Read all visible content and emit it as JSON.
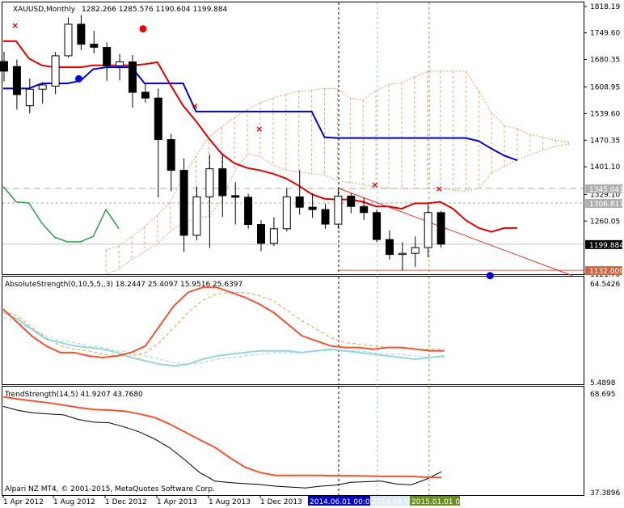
{
  "chart_data": {
    "type": "candlestick",
    "symbol_label": "XAUUSD,Monthly",
    "ohlc_label": "1282.266 1285.576 1190.604 1199.884",
    "footer": "Alpari NZ MT4, © 2001-2015, MetaQuotes Software Corp.",
    "colors": {
      "bull": "#ffffff",
      "bear": "#000000",
      "kijun": "#0000cc",
      "tenkan": "#dd0000",
      "chikou": "#2e9e48",
      "cloud": "#e9a070",
      "trendline": "#dd3322",
      "grey_level": "#999999",
      "vline_black": "#000000",
      "vline_blue": "#8fc7d9",
      "vline_brown": "#b08a4a",
      "as_main": "#ee5533",
      "as_second": "#99d3dd",
      "ts_main": "#ee5533",
      "ts_second": "#000000",
      "tag_blue": "#0000cc",
      "tag_olive": "#6b8e23",
      "tag_light": "#dce8f0"
    },
    "price_axis": {
      "range": [
        1121.71,
        1818.19
      ],
      "labels": [
        "1818.19",
        "1749.60",
        "1680.35",
        "1608.95",
        "1539.60",
        "1470.35",
        "1401.10",
        "1329.10",
        "1260.05",
        "1121.70"
      ],
      "level_tags": [
        "1345.041",
        "1306.817",
        "1199.884",
        "1132.009"
      ]
    },
    "time_axis": {
      "labels": [
        "1 Apr 2012",
        "1 Aug 2012",
        "1 Dec 2012",
        "1 Apr 2013",
        "1 Aug 2013",
        "1 Dec 2013"
      ],
      "highlight_tags": [
        "2014.06.01 00:00",
        "2014.09.01 00:00",
        "2015.01.01 00:00"
      ]
    },
    "candles": [
      {
        "o": 1675,
        "h": 1700,
        "l": 1623,
        "c": 1650
      },
      {
        "o": 1662,
        "h": 1680,
        "l": 1550,
        "c": 1589
      },
      {
        "o": 1560,
        "h": 1631,
        "l": 1540,
        "c": 1603
      },
      {
        "o": 1603,
        "h": 1621,
        "l": 1565,
        "c": 1614
      },
      {
        "o": 1611,
        "h": 1700,
        "l": 1590,
        "c": 1690
      },
      {
        "o": 1690,
        "h": 1790,
        "l": 1685,
        "c": 1772
      },
      {
        "o": 1772,
        "h": 1796,
        "l": 1705,
        "c": 1720
      },
      {
        "o": 1720,
        "h": 1755,
        "l": 1696,
        "c": 1712
      },
      {
        "o": 1712,
        "h": 1725,
        "l": 1625,
        "c": 1664
      },
      {
        "o": 1664,
        "h": 1695,
        "l": 1626,
        "c": 1674
      },
      {
        "o": 1674,
        "h": 1692,
        "l": 1555,
        "c": 1595
      },
      {
        "o": 1595,
        "h": 1617,
        "l": 1568,
        "c": 1580
      },
      {
        "o": 1580,
        "h": 1605,
        "l": 1321,
        "c": 1472
      },
      {
        "o": 1472,
        "h": 1487,
        "l": 1338,
        "c": 1392
      },
      {
        "o": 1392,
        "h": 1423,
        "l": 1180,
        "c": 1223
      },
      {
        "o": 1223,
        "h": 1349,
        "l": 1210,
        "c": 1323
      },
      {
        "o": 1323,
        "h": 1433,
        "l": 1190,
        "c": 1396
      },
      {
        "o": 1396,
        "h": 1434,
        "l": 1271,
        "c": 1326
      },
      {
        "o": 1326,
        "h": 1361,
        "l": 1251,
        "c": 1322
      },
      {
        "o": 1322,
        "h": 1331,
        "l": 1240,
        "c": 1251
      },
      {
        "o": 1251,
        "h": 1262,
        "l": 1182,
        "c": 1202
      },
      {
        "o": 1202,
        "h": 1270,
        "l": 1195,
        "c": 1240
      },
      {
        "o": 1240,
        "h": 1346,
        "l": 1233,
        "c": 1323
      },
      {
        "o": 1323,
        "h": 1392,
        "l": 1277,
        "c": 1296
      },
      {
        "o": 1296,
        "h": 1332,
        "l": 1268,
        "c": 1290
      },
      {
        "o": 1290,
        "h": 1305,
        "l": 1240,
        "c": 1252
      },
      {
        "o": 1252,
        "h": 1345,
        "l": 1240,
        "c": 1325
      },
      {
        "o": 1325,
        "h": 1332,
        "l": 1280,
        "c": 1298
      },
      {
        "o": 1298,
        "h": 1321,
        "l": 1263,
        "c": 1282
      },
      {
        "o": 1282,
        "h": 1290,
        "l": 1206,
        "c": 1212
      },
      {
        "o": 1212,
        "h": 1236,
        "l": 1160,
        "c": 1173
      },
      {
        "o": 1173,
        "h": 1205,
        "l": 1131,
        "c": 1176
      },
      {
        "o": 1176,
        "h": 1220,
        "l": 1141,
        "c": 1191
      },
      {
        "o": 1191,
        "h": 1305,
        "l": 1166,
        "c": 1282
      },
      {
        "o": 1282,
        "h": 1286,
        "l": 1191,
        "c": 1200
      }
    ],
    "kijun_line": [
      1605,
      1605,
      1605,
      1618,
      1618,
      1618,
      1625,
      1655,
      1660,
      1660,
      1660,
      1618,
      1618,
      1618,
      1618,
      1545,
      1545,
      1545,
      1545,
      1545,
      1545,
      1545,
      1545,
      1545,
      1545,
      1478,
      1476,
      1476,
      1476,
      1476,
      1476,
      1476,
      1476,
      1476,
      1476,
      1476,
      1476,
      1468,
      1448,
      1430,
      1418
    ],
    "tenkan_line": [
      1728,
      1728,
      1683,
      1665,
      1660,
      1660,
      1660,
      1665,
      1665,
      1665,
      1665,
      1668,
      1673,
      1615,
      1560,
      1520,
      1475,
      1435,
      1410,
      1398,
      1392,
      1383,
      1371,
      1352,
      1330,
      1318,
      1316,
      1316,
      1310,
      1298,
      1298,
      1292,
      1306,
      1306,
      1310,
      1292,
      1262,
      1242,
      1232,
      1242,
      1242
    ],
    "chikou_line": [
      1350,
      1310,
      1307,
      1255,
      1218,
      1206,
      1206,
      1220,
      1290,
      1240
    ],
    "cloud_upper": [
      1185,
      1195,
      1220,
      1245,
      1275,
      1310,
      1375,
      1430,
      1478,
      1505,
      1530,
      1550,
      1568,
      1580,
      1590,
      1598,
      1600,
      1605,
      1605,
      1580,
      1575,
      1600,
      1615,
      1620,
      1635,
      1650,
      1650,
      1650,
      1650,
      1598,
      1542,
      1508,
      1500,
      1485,
      1478,
      1470,
      1465
    ],
    "cloud_lower": [
      1122,
      1135,
      1160,
      1180,
      1200,
      1235,
      1255,
      1268,
      1272,
      1315,
      1390,
      1435,
      1428,
      1405,
      1392,
      1388,
      1383,
      1380,
      1365,
      1360,
      1355,
      1348,
      1345,
      1345,
      1345,
      1345,
      1345,
      1340,
      1338,
      1345,
      1385,
      1402,
      1420,
      1432,
      1445,
      1455,
      1460
    ],
    "chinkou_marks": [
      {
        "bar": 0,
        "p": 1770,
        "kind": "x"
      },
      {
        "bar": 10,
        "p": 1760,
        "kind": "dot-red"
      },
      {
        "bar": 5,
        "p": 1630,
        "kind": "dot-blue"
      },
      {
        "bar": 14,
        "p": 1560,
        "kind": "x"
      },
      {
        "bar": 19,
        "p": 1500,
        "kind": "x"
      },
      {
        "bar": 28,
        "p": 1355,
        "kind": "x"
      },
      {
        "bar": 33,
        "p": 1345,
        "kind": "x"
      },
      {
        "bar": 37,
        "p": 1118,
        "kind": "dot-blue"
      }
    ],
    "absolute_strength": {
      "label": "AbsoluteStrength(0,10,5,5,,3) 18.2447 25.4097 15.9516 25.6397",
      "range": [
        5.4898,
        64.5426
      ],
      "tick_labels": [
        "64.5426",
        "5.4898"
      ],
      "bulls": [
        49,
        41,
        33,
        27,
        23,
        23,
        21,
        20,
        21,
        23,
        27,
        39,
        51,
        59,
        62,
        62,
        59,
        56,
        52,
        47,
        40,
        33,
        30,
        27,
        26,
        26,
        25,
        26,
        26,
        25,
        24,
        24
      ],
      "bears": [
        47,
        43,
        37,
        31,
        29,
        27,
        26,
        25,
        23,
        20,
        18,
        16,
        15,
        16,
        19,
        21,
        22,
        23,
        24,
        24,
        24,
        23,
        24,
        25,
        24,
        23,
        22,
        21,
        20,
        19,
        20,
        21
      ],
      "bulls_signal": [
        48,
        45,
        38,
        32,
        27,
        25,
        24,
        22,
        21,
        21,
        23,
        29,
        38,
        47,
        54,
        58,
        59,
        59,
        57,
        54,
        48,
        42,
        37,
        32,
        29,
        28,
        27,
        26,
        26,
        25,
        25,
        25
      ],
      "bears_signal": [
        44,
        41,
        37,
        33,
        30,
        29,
        27,
        26,
        24,
        23,
        21,
        19,
        17,
        16,
        17,
        19,
        20,
        21,
        22,
        23,
        23,
        23,
        24,
        24,
        24,
        24,
        23,
        22,
        22,
        21,
        20,
        20
      ]
    },
    "trend_strength": {
      "label": "TrendStrength(14,5) 41.9207 43.7680",
      "range": [
        37.3896,
        68.695
      ],
      "tick_labels": [
        "68.695",
        "37.3896"
      ],
      "main": [
        67.5,
        66.8,
        66.2,
        65.6,
        64.9,
        64.1,
        63.5,
        63.3,
        63.0,
        62.1,
        61.0,
        58.9,
        56.4,
        53.9,
        51.5,
        48.2,
        45.2,
        43.5,
        42.6,
        42.6,
        42.6,
        42.6,
        42.5,
        42.5,
        42.4,
        42.3,
        42.3,
        42.3,
        42.0,
        41.9
      ],
      "signal": [
        64.5,
        63.2,
        62.4,
        62.1,
        61.8,
        60.3,
        59.5,
        59.3,
        58.0,
        56.4,
        54.2,
        51.4,
        47.6,
        43.5,
        40.8,
        40.3,
        40.0,
        39.7,
        39.2,
        38.9,
        38.6,
        39.2,
        39.5,
        40.4,
        40.6,
        40.8,
        39.9,
        39.6,
        41.4,
        43.8
      ]
    }
  }
}
